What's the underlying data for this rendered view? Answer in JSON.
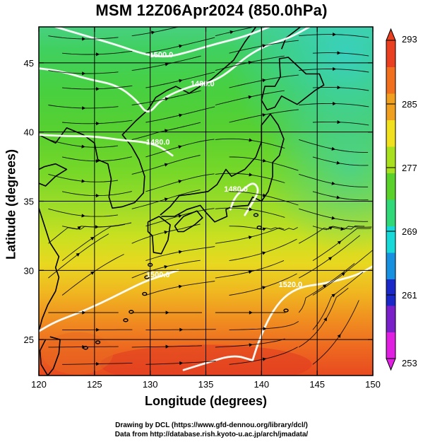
{
  "title": "MSM 12Z06Apr2024 (850.0hPa)",
  "xlabel": "Longitude (degrees)",
  "ylabel": "Latitude  (degrees)",
  "credit_line1": "Drawing by DCL (https://www.gfd-dennou.org/library/dcl/)",
  "credit_line2": "Data from http://database.rish.kyoto-u.ac.jp/arch/jmadata/",
  "chart_data": {
    "type": "heatmap",
    "xlim": [
      120,
      150
    ],
    "ylim": [
      22.4,
      47.6
    ],
    "xticks": [
      120,
      125,
      130,
      135,
      140,
      145,
      150
    ],
    "yticks": [
      25,
      30,
      35,
      40,
      45
    ],
    "grid": true,
    "colorbar": {
      "min": 253,
      "max": 293,
      "tick_labels": [
        293,
        285,
        277,
        269,
        261,
        253
      ],
      "colors": [
        "#e020e0",
        "#7a20c8",
        "#1a28c8",
        "#1890e0",
        "#18d8d8",
        "#30d878",
        "#5ad02a",
        "#a8e020",
        "#f0e020",
        "#f0a020",
        "#f07020",
        "#e84020"
      ]
    },
    "contour_labels": [
      {
        "text": "1500.0",
        "lon": 131.0,
        "lat": 45.4
      },
      {
        "text": "1480.0",
        "lon": 134.7,
        "lat": 43.3
      },
      {
        "text": "1480.0",
        "lon": 130.7,
        "lat": 39.1
      },
      {
        "text": "1480.0",
        "lon": 137.7,
        "lat": 35.7
      },
      {
        "text": "1500.0",
        "lon": 130.7,
        "lat": 29.5
      },
      {
        "text": "1520.0",
        "lon": 142.6,
        "lat": 28.8
      }
    ]
  }
}
